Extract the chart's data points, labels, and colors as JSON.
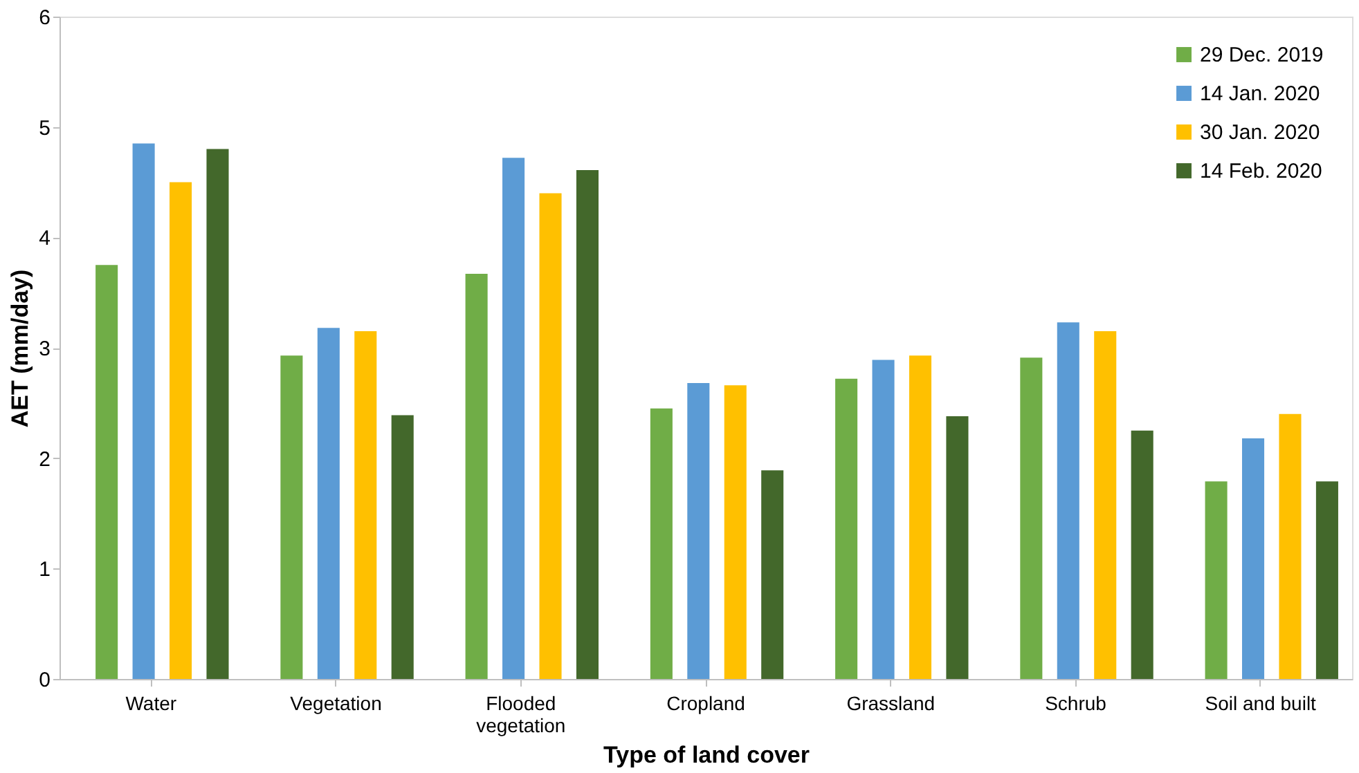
{
  "chart_data": {
    "type": "bar",
    "xlabel": "Type of land cover",
    "ylabel": "AET (mm/day)",
    "categories": [
      "Water",
      "Vegetation",
      "Flooded vegetation",
      "Cropland",
      "Grassland",
      "Schrub",
      "Soil and built"
    ],
    "series": [
      {
        "name": "29 Dec. 2019",
        "color": "#70ad47",
        "values": [
          3.75,
          2.93,
          3.67,
          2.45,
          2.72,
          2.91,
          1.79
        ]
      },
      {
        "name": "14 Jan. 2020",
        "color": "#5b9bd5",
        "values": [
          4.85,
          3.18,
          4.72,
          2.68,
          2.89,
          3.23,
          2.18
        ]
      },
      {
        "name": "30 Jan. 2020",
        "color": "#ffc000",
        "values": [
          4.5,
          3.15,
          4.4,
          2.66,
          2.93,
          3.15,
          2.4
        ]
      },
      {
        "name": "14 Feb. 2020",
        "color": "#43682b",
        "values": [
          4.8,
          2.39,
          4.61,
          1.89,
          2.38,
          2.25,
          1.79
        ]
      }
    ],
    "ylim": [
      0,
      6
    ],
    "yticks": [
      0,
      1,
      2,
      3,
      4,
      5,
      6
    ],
    "grid": false,
    "legend": "top right"
  }
}
